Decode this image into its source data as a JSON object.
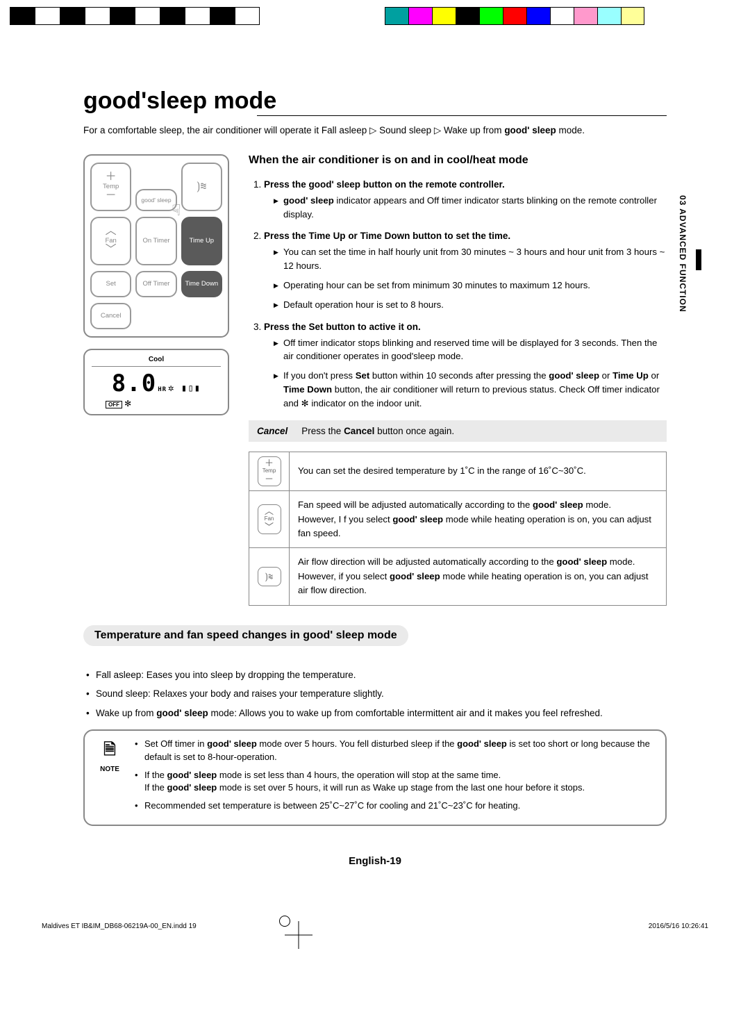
{
  "sidebar": {
    "text": "03   ADVANCED FUNCTION"
  },
  "title": "good'sleep mode",
  "intro_pre": "For a comfortable sleep, the air conditioner will operate it Fall asleep ▷ Sound sleep ▷ Wake up from ",
  "intro_gs": "good' sleep",
  "intro_post": " mode.",
  "section1_heading": "When the air conditioner is on and in cool/heat mode",
  "remote": {
    "temp": "Temp",
    "fan": "Fan",
    "good_sleep": "good' sleep",
    "on_timer": "On Timer",
    "off_timer": "Off Timer",
    "time_up": "Time Up",
    "time_down": "Time Down",
    "set": "Set",
    "cancel": "Cancel"
  },
  "display": {
    "mode": "Cool",
    "digits": "8.0",
    "hr": "HR",
    "off": "OFF"
  },
  "steps": [
    {
      "title_pre": "Press the ",
      "title_gs": "good' sleep",
      "title_post": " button on the remote controller.",
      "items": [
        {
          "pre": "",
          "gs": "good' sleep",
          "post": " indicator appears and Off timer indicator starts blinking on the remote controller display."
        }
      ]
    },
    {
      "title_full": "Press the Time Up or Time Down button to set the time.",
      "items": [
        {
          "text": "You can set the time in half hourly unit from 30 minutes ~ 3 hours and hour unit from 3 hours ~ 12 hours."
        },
        {
          "text": "Operating hour can be set from minimum 30 minutes to maximum 12 hours."
        },
        {
          "text": "Default operation hour is set to 8 hours."
        }
      ]
    },
    {
      "title_full": "Press the Set button to active it on.",
      "items": [
        {
          "text": "Off timer indicator stops blinking and reserved time will be displayed for 3 seconds. Then the air conditioner operates in good'sleep mode."
        },
        {
          "html": true,
          "pre": "If you don't press ",
          "b1": "Set",
          "mid1": " button within 10 seconds after pressing the ",
          "gs": "good' sleep",
          "mid2": " or ",
          "b2": "Time Up",
          "mid3": " or ",
          "b3": "Time Down",
          "post": " button, the air conditioner will return to previous status. Check Off timer indicator and ✻ indicator on the indoor unit."
        }
      ]
    }
  ],
  "cancel": {
    "label": "Cancel",
    "text_pre": "Press the ",
    "b": "Cancel",
    "text_post": " button once again."
  },
  "table": {
    "rows": [
      {
        "icon": "temp",
        "text": "You can set the desired temperature by 1˚C in the range of 16˚C~30˚C."
      },
      {
        "icon": "fan",
        "pre": "Fan speed will be adjusted automatically according to the ",
        "gs1": "good' sleep",
        "mid": " mode.\nHowever, I f you select ",
        "gs2": "good' sleep",
        "post": " mode while heating operation is on, you can adjust fan speed."
      },
      {
        "icon": "swing",
        "pre": "Air flow direction will be adjusted automatically according to the ",
        "gs1": "good' sleep",
        "mid": " mode.\nHowever, if you select ",
        "gs2": "good' sleep",
        "post": " mode while heating operation is on, you can adjust air flow direction."
      }
    ]
  },
  "section2_heading_pre": "Temperature and fan speed changes in ",
  "section2_heading_gs": "good' sleep",
  "section2_heading_post": " mode",
  "phases": [
    "Fall asleep: Eases you into sleep by dropping the temperature.",
    "Sound sleep: Relaxes your body and raises your temperature slightly."
  ],
  "phase3_pre": "Wake up from ",
  "phase3_gs": "good' sleep",
  "phase3_post": " mode: Allows you to wake up from comfortable intermittent air and it makes you feel refreshed.",
  "note_label": "NOTE",
  "notes": {
    "n1_pre": "Set Off timer in ",
    "n1_gs1": "good' sleep",
    "n1_mid": " mode over 5 hours. You fell disturbed sleep if the ",
    "n1_gs2": "good' sleep",
    "n1_post": " is set too short or long because the default is set to 8-hour-operation.",
    "n2_pre": "If the ",
    "n2_gs1": "good' sleep",
    "n2_mid": " mode is set less than 4 hours, the operation will stop at the same time.\nIf the ",
    "n2_gs2": "good' sleep",
    "n2_post": " mode is set over 5 hours, it will run as Wake up stage from the last one hour before it stops.",
    "n3": "Recommended set temperature is between 25˚C~27˚C for cooling and 21˚C~23˚C for heating."
  },
  "footer": {
    "page": "English-19",
    "file": "Maldives ET IB&IM_DB68-06219A-00_EN.indd   19",
    "date": "2016/5/16   10:26:41"
  },
  "top_colors_left": [
    "#000000",
    "#ffffff",
    "#000000",
    "#ffffff",
    "#000000",
    "#ffffff",
    "#000000",
    "#ffffff",
    "#000000",
    "#ffffff"
  ],
  "top_colors_right": [
    "#00a0a0",
    "#ff00ff",
    "#ffff00",
    "#000000",
    "#00ff00",
    "#ff0000",
    "#0000ff",
    "#ffffff",
    "#ff99cc",
    "#99ffff",
    "#ffff99"
  ]
}
